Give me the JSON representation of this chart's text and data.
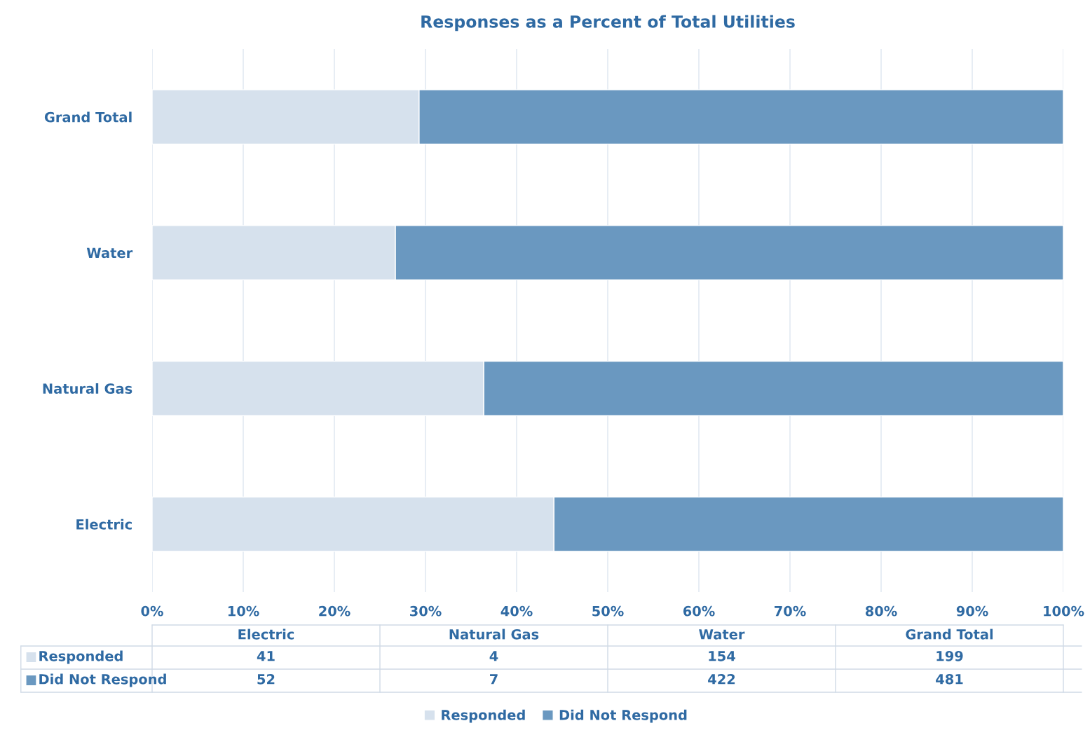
{
  "chart_data": {
    "type": "bar",
    "orientation": "horizontal",
    "stacked": true,
    "title": "Responses as a Percent of Total Utilities",
    "categories": [
      "Grand Total",
      "Water",
      "Natural Gas",
      "Electric"
    ],
    "series": [
      {
        "name": "Responded",
        "color": "#d6e1ed",
        "values": [
          29.3,
          26.7,
          36.4,
          44.1
        ]
      },
      {
        "name": "Did Not Respond",
        "color": "#6a98c0",
        "values": [
          70.7,
          73.3,
          63.6,
          55.9
        ]
      }
    ],
    "annotations": [
      "199",
      "154",
      "4",
      "41",
      "481",
      "422",
      "7",
      "52"
    ],
    "xlim": [
      0,
      100
    ],
    "xticks": [
      {
        "value": 0,
        "label": "0%"
      },
      {
        "value": 10,
        "label": "10%"
      },
      {
        "value": 20,
        "label": "20%"
      },
      {
        "value": 30,
        "label": "30%"
      },
      {
        "value": 40,
        "label": "40%"
      },
      {
        "value": 50,
        "label": "50%"
      },
      {
        "value": 60,
        "label": "60%"
      },
      {
        "value": 70,
        "label": "70%"
      },
      {
        "value": 80,
        "label": "80%"
      },
      {
        "value": 90,
        "label": "90%"
      },
      {
        "value": 100,
        "label": "100%"
      }
    ],
    "grid": "x",
    "legend": "bottom"
  }
}
